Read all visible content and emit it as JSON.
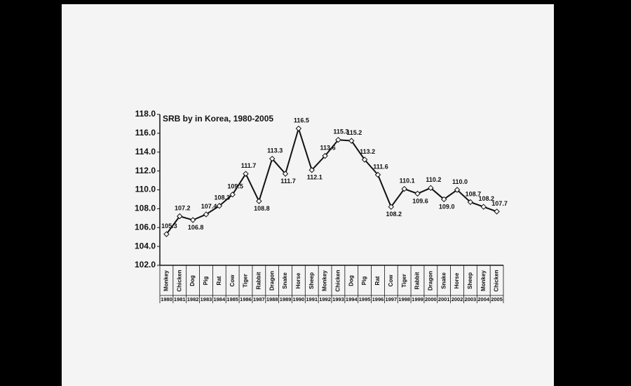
{
  "chart_data": {
    "type": "line",
    "title": "SRB by in Korea, 1980-2005",
    "categories": [
      "Monkey",
      "Chicken",
      "Dog",
      "Pig",
      "Rat",
      "Cow",
      "Tiger",
      "Rabbit",
      "Dragon",
      "Snake",
      "Horse",
      "Sheep",
      "Monkey",
      "Chicken",
      "Dog",
      "Pig",
      "Rat",
      "Cow",
      "Tiger",
      "Rabbit",
      "Dragon",
      "Snake",
      "Horse",
      "Sheep",
      "Monkey",
      "Chicken"
    ],
    "years": [
      "1980",
      "1981",
      "1982",
      "1983",
      "1984",
      "1985",
      "1986",
      "1987",
      "1988",
      "1989",
      "1990",
      "1991",
      "1992",
      "1993",
      "1994",
      "1995",
      "1996",
      "1997",
      "1998",
      "1999",
      "2000",
      "2001",
      "2002",
      "2003",
      "2004",
      "2005"
    ],
    "values": [
      105.3,
      107.2,
      106.8,
      107.4,
      108.3,
      109.5,
      111.7,
      108.8,
      113.3,
      111.7,
      116.5,
      112.1,
      113.6,
      115.3,
      115.2,
      113.2,
      111.6,
      108.2,
      110.1,
      109.6,
      110.2,
      109.0,
      110.0,
      108.7,
      108.2,
      107.7
    ],
    "value_labels": [
      "105.3",
      "107.2",
      "106.8",
      "107.4",
      "108.3",
      "109.5",
      "111.7",
      "108.8",
      "113.3",
      "111.7",
      "116.5",
      "112.1",
      "113.6",
      "115.3",
      "115.2",
      "113.2",
      "111.6",
      "108.2",
      "110.1",
      "109.6",
      "110.2",
      "109.0",
      "110.0",
      "108.7",
      "108.2",
      "107.7"
    ],
    "color": "#111111",
    "ylim": [
      102,
      118
    ],
    "yticks": [
      {
        "value": 102,
        "label": "102.0"
      },
      {
        "value": 104,
        "label": "104.0"
      },
      {
        "value": 106,
        "label": "106.0"
      },
      {
        "value": 108,
        "label": "108.0"
      },
      {
        "value": 110,
        "label": "110.0"
      },
      {
        "value": 112,
        "label": "112.0"
      },
      {
        "value": 114,
        "label": "114.0"
      },
      {
        "value": 116,
        "label": "116.0"
      },
      {
        "value": 118,
        "label": "118.0"
      }
    ],
    "grid": false
  }
}
